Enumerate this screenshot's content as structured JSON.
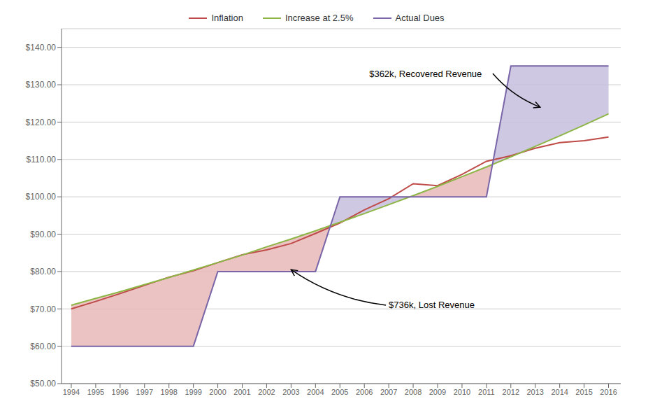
{
  "chart_data": {
    "type": "line",
    "series": [
      {
        "name": "Inflation",
        "color": "#be4b48",
        "x": [
          1994,
          1995,
          1996,
          1997,
          1998,
          1999,
          2000,
          2001,
          2002,
          2003,
          2004,
          2005,
          2006,
          2007,
          2008,
          2009,
          2010,
          2011,
          2012,
          2013,
          2014,
          2015,
          2016
        ],
        "values": [
          70.0,
          72.0,
          74.1,
          76.3,
          78.5,
          80.2,
          82.4,
          84.5,
          85.8,
          87.5,
          90.2,
          93.0,
          96.5,
          99.5,
          103.5,
          103.0,
          106.0,
          109.5,
          111.0,
          113.0,
          114.5,
          115.0,
          116.0
        ]
      },
      {
        "name": "Increase at 2.5%",
        "color": "#8db646",
        "x": [
          1994,
          1995,
          1996,
          1997,
          1998,
          1999,
          2000,
          2001,
          2002,
          2003,
          2004,
          2005,
          2006,
          2007,
          2008,
          2009,
          2010,
          2011,
          2012,
          2013,
          2014,
          2015,
          2016
        ],
        "values": [
          71.0,
          72.8,
          74.6,
          76.5,
          78.4,
          80.4,
          82.4,
          84.4,
          86.6,
          88.7,
          90.9,
          93.2,
          95.5,
          97.9,
          100.3,
          102.8,
          105.4,
          108.0,
          110.7,
          113.5,
          116.3,
          119.2,
          122.2
        ]
      },
      {
        "name": "Actual Dues",
        "color": "#7965a8",
        "x": [
          1994,
          1999,
          1999,
          2000,
          2004,
          2004,
          2005,
          2011,
          2011,
          2012,
          2016
        ],
        "values": [
          60,
          60,
          60,
          80,
          80,
          80,
          100,
          100,
          100,
          135,
          135
        ]
      }
    ],
    "xlim": [
      1993.6,
      2016.5
    ],
    "xticks": [
      1994,
      1995,
      1996,
      1997,
      1998,
      1999,
      2000,
      2001,
      2002,
      2003,
      2004,
      2005,
      2006,
      2007,
      2008,
      2009,
      2010,
      2011,
      2012,
      2013,
      2014,
      2015,
      2016
    ],
    "ylim": [
      50,
      145
    ],
    "yticks": [
      {
        "value": 50,
        "label": "$50.00"
      },
      {
        "value": 60,
        "label": "$60.00"
      },
      {
        "value": 70,
        "label": "$70.00"
      },
      {
        "value": 80,
        "label": "$80.00"
      },
      {
        "value": 90,
        "label": "$90.00"
      },
      {
        "value": 100,
        "label": "$100.00"
      },
      {
        "value": 110,
        "label": "$110.00"
      },
      {
        "value": 120,
        "label": "$120.00"
      },
      {
        "value": 130,
        "label": "$130.00"
      },
      {
        "value": 140,
        "label": "$140.00"
      }
    ],
    "grid": "y",
    "legend": "top",
    "annotations": [
      {
        "text": "$736k, Lost Revenue",
        "x": 2007.0,
        "y": 71.0,
        "arrow_x": 2003.0,
        "arrow_y": 80.5,
        "region_color": "#e8b8b8"
      },
      {
        "text": "$362k, Recovered Revenue",
        "x": 2006.2,
        "y": 133.0,
        "arrow_x": 2013.2,
        "arrow_y": 124.0,
        "region_color": "#c5bedd"
      }
    ]
  }
}
